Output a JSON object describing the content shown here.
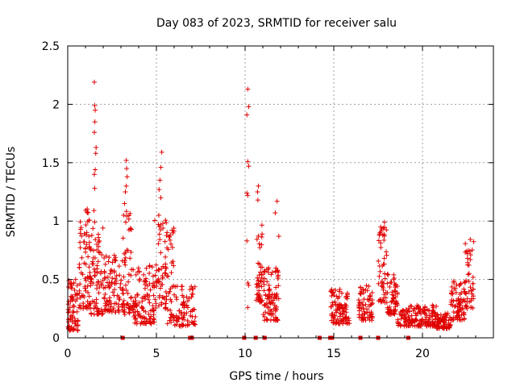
{
  "chart_data": {
    "type": "scatter",
    "title": "Day 083 of 2023, SRMTID for receiver salu",
    "xlabel": "GPS time / hours",
    "ylabel": "SRMTID / TECUs",
    "xlim": [
      0,
      24
    ],
    "ylim": [
      0,
      2.5
    ],
    "x_ticks": [
      0,
      5,
      10,
      15,
      20
    ],
    "x_tick_labels": [
      "0",
      "5",
      "10",
      "15",
      "20"
    ],
    "y_ticks": [
      0,
      0.5,
      1,
      1.5,
      2,
      2.5
    ],
    "y_tick_labels": [
      "0",
      "0.5",
      "1",
      "1.5",
      "2",
      "2.5"
    ],
    "grid": true,
    "marker": "plus",
    "series_color": "#e00000",
    "spikes": [
      {
        "x": 1.5,
        "y": 2.19
      },
      {
        "x": 1.52,
        "y": 1.99
      },
      {
        "x": 1.55,
        "y": 1.95
      },
      {
        "x": 1.53,
        "y": 1.85
      },
      {
        "x": 1.5,
        "y": 1.76
      },
      {
        "x": 1.6,
        "y": 1.63
      },
      {
        "x": 1.58,
        "y": 1.58
      },
      {
        "x": 1.55,
        "y": 1.44
      },
      {
        "x": 1.5,
        "y": 1.4
      },
      {
        "x": 1.52,
        "y": 1.28
      },
      {
        "x": 1.48,
        "y": 1.09
      },
      {
        "x": 3.3,
        "y": 1.52
      },
      {
        "x": 3.32,
        "y": 1.45
      },
      {
        "x": 3.35,
        "y": 1.38
      },
      {
        "x": 3.3,
        "y": 1.3
      },
      {
        "x": 3.25,
        "y": 1.25
      },
      {
        "x": 3.2,
        "y": 1.15
      },
      {
        "x": 5.3,
        "y": 1.59
      },
      {
        "x": 5.25,
        "y": 1.46
      },
      {
        "x": 5.2,
        "y": 1.35
      },
      {
        "x": 5.15,
        "y": 1.27
      },
      {
        "x": 5.25,
        "y": 1.2
      },
      {
        "x": 10.15,
        "y": 2.13
      },
      {
        "x": 10.2,
        "y": 1.98
      },
      {
        "x": 10.1,
        "y": 1.91
      },
      {
        "x": 10.15,
        "y": 1.51
      },
      {
        "x": 10.2,
        "y": 1.47
      },
      {
        "x": 10.1,
        "y": 1.24
      },
      {
        "x": 10.15,
        "y": 1.22
      },
      {
        "x": 10.1,
        "y": 0.83
      },
      {
        "x": 10.15,
        "y": 0.47
      },
      {
        "x": 10.2,
        "y": 0.45
      },
      {
        "x": 10.15,
        "y": 0.26
      },
      {
        "x": 10.75,
        "y": 1.3
      },
      {
        "x": 10.7,
        "y": 1.25
      },
      {
        "x": 10.72,
        "y": 1.18
      },
      {
        "x": 11.8,
        "y": 1.17
      },
      {
        "x": 11.7,
        "y": 1.07
      },
      {
        "x": 11.9,
        "y": 0.87
      }
    ],
    "clusters": [
      {
        "x_start": 0.0,
        "x_end": 0.6,
        "y_min": 0.06,
        "y_max": 0.5,
        "count": 70
      },
      {
        "x_start": 0.6,
        "x_end": 1.3,
        "y_min": 0.25,
        "y_max": 1.12,
        "count": 80
      },
      {
        "x_start": 1.3,
        "x_end": 2.0,
        "y_min": 0.2,
        "y_max": 1.0,
        "count": 70
      },
      {
        "x_start": 2.0,
        "x_end": 3.1,
        "y_min": 0.22,
        "y_max": 0.72,
        "count": 90
      },
      {
        "x_start": 3.1,
        "x_end": 3.6,
        "y_min": 0.2,
        "y_max": 1.1,
        "count": 55
      },
      {
        "x_start": 3.6,
        "x_end": 4.9,
        "y_min": 0.12,
        "y_max": 0.62,
        "count": 110
      },
      {
        "x_start": 4.9,
        "x_end": 5.6,
        "y_min": 0.25,
        "y_max": 1.05,
        "count": 65
      },
      {
        "x_start": 5.6,
        "x_end": 6.0,
        "y_min": 0.12,
        "y_max": 0.95,
        "count": 35
      },
      {
        "x_start": 6.0,
        "x_end": 7.2,
        "y_min": 0.1,
        "y_max": 0.45,
        "count": 80
      },
      {
        "x_start": 10.6,
        "x_end": 11.0,
        "y_min": 0.3,
        "y_max": 1.0,
        "count": 45
      },
      {
        "x_start": 11.0,
        "x_end": 11.9,
        "y_min": 0.15,
        "y_max": 0.6,
        "count": 90
      },
      {
        "x_start": 14.8,
        "x_end": 15.9,
        "y_min": 0.12,
        "y_max": 0.42,
        "count": 100
      },
      {
        "x_start": 16.4,
        "x_end": 17.2,
        "y_min": 0.15,
        "y_max": 0.45,
        "count": 70
      },
      {
        "x_start": 17.5,
        "x_end": 18.0,
        "y_min": 0.3,
        "y_max": 1.0,
        "count": 50
      },
      {
        "x_start": 18.0,
        "x_end": 18.6,
        "y_min": 0.2,
        "y_max": 0.55,
        "count": 60
      },
      {
        "x_start": 18.6,
        "x_end": 20.8,
        "y_min": 0.1,
        "y_max": 0.28,
        "count": 170
      },
      {
        "x_start": 20.8,
        "x_end": 21.6,
        "y_min": 0.08,
        "y_max": 0.22,
        "count": 75
      },
      {
        "x_start": 21.6,
        "x_end": 22.4,
        "y_min": 0.15,
        "y_max": 0.5,
        "count": 75
      },
      {
        "x_start": 22.4,
        "x_end": 22.9,
        "y_min": 0.25,
        "y_max": 0.88,
        "count": 45
      }
    ],
    "zero_markers_x": [
      3.1,
      6.9,
      7.0,
      9.95,
      10.6,
      11.1,
      14.2,
      14.8,
      14.9,
      16.5,
      17.5,
      19.2
    ]
  }
}
